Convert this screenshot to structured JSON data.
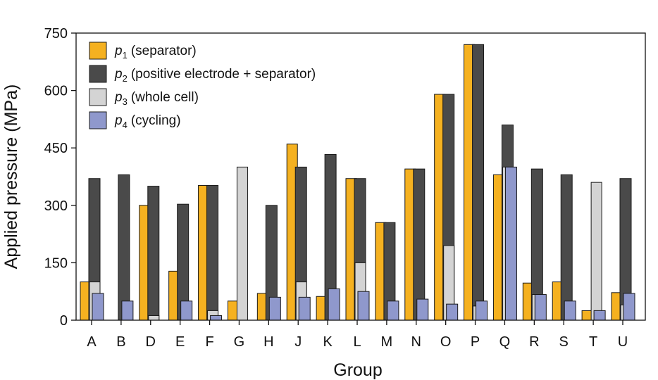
{
  "chart_data": {
    "type": "bar",
    "title": "",
    "xlabel": "Group",
    "ylabel": "Applied pressure (MPa)",
    "ylim": [
      0,
      750
    ],
    "yticks": [
      0,
      150,
      300,
      450,
      600,
      750
    ],
    "grid": false,
    "legend_position": "top-left",
    "categories": [
      "A",
      "B",
      "D",
      "E",
      "F",
      "G",
      "H",
      "J",
      "K",
      "L",
      "M",
      "N",
      "O",
      "P",
      "Q",
      "R",
      "S",
      "T",
      "U"
    ],
    "series": [
      {
        "name": "p1 (separator)",
        "var": "p",
        "sub": "1",
        "desc": "(separator)",
        "color": "#f5b120",
        "values": [
          100,
          null,
          300,
          128,
          352,
          50,
          70,
          460,
          62,
          370,
          255,
          395,
          590,
          720,
          380,
          97,
          100,
          25,
          72
        ]
      },
      {
        "name": "p2 (positive electrode + separator)",
        "var": "p",
        "sub": "2",
        "desc": "(positive electrode + separator)",
        "color": "#4a4a4a",
        "values": [
          370,
          380,
          350,
          303,
          352,
          null,
          300,
          400,
          433,
          370,
          255,
          395,
          590,
          720,
          510,
          395,
          380,
          null,
          370
        ]
      },
      {
        "name": "p3 (whole cell)",
        "var": "p",
        "sub": "3",
        "desc": "(whole cell)",
        "color": "#d4d4d4",
        "values": [
          100,
          null,
          12,
          null,
          25,
          400,
          null,
          100,
          null,
          150,
          null,
          null,
          195,
          37,
          400,
          67,
          null,
          360,
          40
        ]
      },
      {
        "name": "p4 (cycling)",
        "var": "p",
        "sub": "4",
        "desc": "(cycling)",
        "color": "#8f98cc",
        "values": [
          70,
          50,
          null,
          50,
          12,
          null,
          60,
          60,
          82,
          75,
          50,
          55,
          42,
          50,
          400,
          67,
          50,
          25,
          70
        ]
      }
    ]
  }
}
